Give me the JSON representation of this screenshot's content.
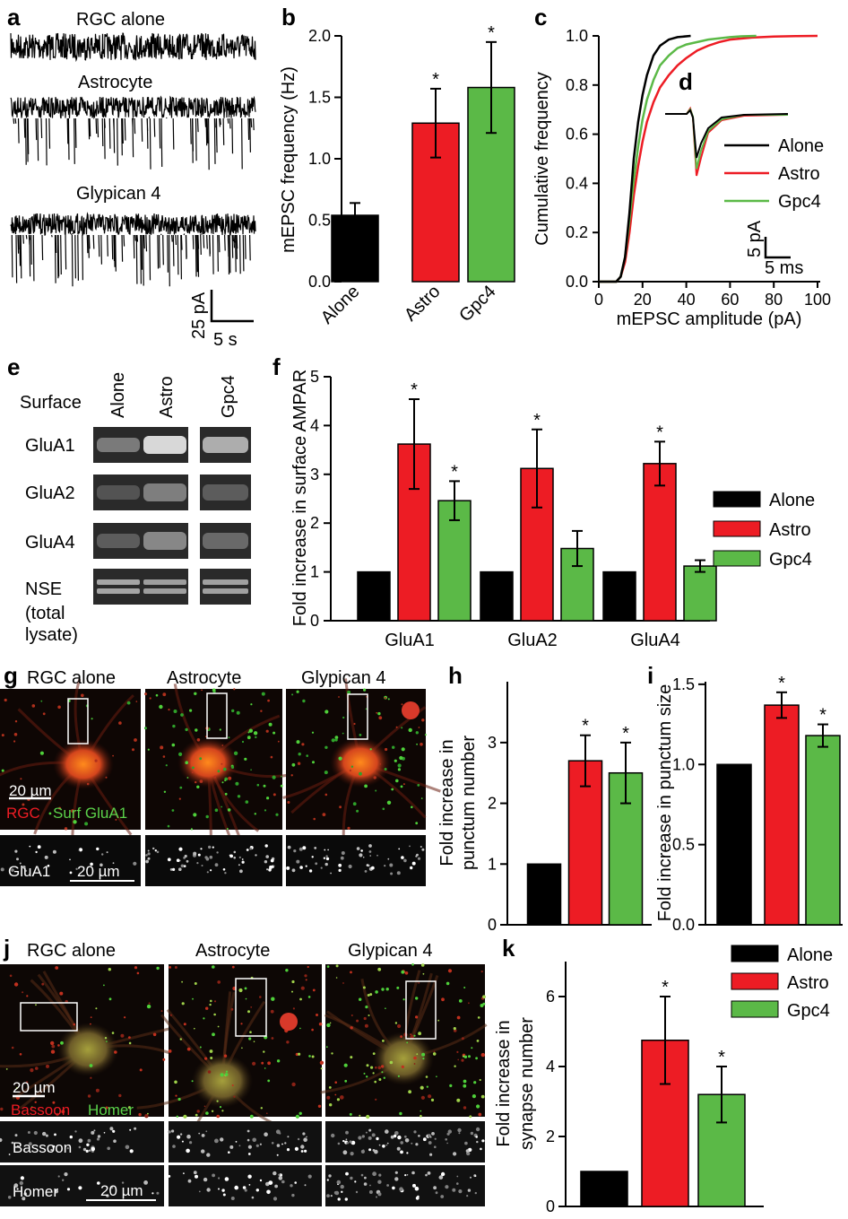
{
  "colors": {
    "alone": "#000000",
    "astro": "#ed1c24",
    "gpc4": "#5bb947"
  },
  "panel_labels": {
    "a": "a",
    "b": "b",
    "c": "c",
    "d": "d",
    "e": "e",
    "f": "f",
    "g": "g",
    "h": "h",
    "i": "i",
    "j": "j",
    "k": "k"
  },
  "panel_a": {
    "traces": [
      "RGC alone",
      "Astrocyte",
      "Glypican 4"
    ],
    "scale_y": "25 pA",
    "scale_x": "5 s"
  },
  "panel_d": {
    "scale_y": "5 pA",
    "scale_x": "5 ms"
  },
  "panel_e": {
    "header": "Surface",
    "columns": [
      "Alone",
      "Astro",
      "Gpc4"
    ],
    "rows": [
      "GluA1",
      "GluA2",
      "GluA4",
      "NSE",
      "(total",
      "lysate)"
    ]
  },
  "panel_g": {
    "titles": [
      "RGC alone",
      "Astrocyte",
      "Glypican 4"
    ],
    "scale": "20 µm",
    "stain_red": "RGC",
    "stain_green": "Surf GluA1",
    "strip_label": "GluA1",
    "strip_scale": "20 µm"
  },
  "panel_j": {
    "titles": [
      "RGC alone",
      "Astrocyte",
      "Glypican 4"
    ],
    "scale": "20 µm",
    "stain_red": "Bassoon",
    "stain_green": "Homer",
    "strip1_label": "Bassoon",
    "strip2_label": "Homer",
    "strip_scale": "20 µm"
  },
  "chart_data": [
    {
      "panel": "b",
      "type": "bar",
      "categories": [
        "Alone",
        "Astro",
        "Gpc4"
      ],
      "values": [
        0.54,
        1.29,
        1.58
      ],
      "errors": [
        0.1,
        0.28,
        0.37
      ],
      "significant": [
        false,
        true,
        true
      ],
      "ylabel": "mEPSC frequency (Hz)",
      "ylim": [
        0,
        2.0
      ],
      "yticks": [
        "0.0",
        "0.5",
        "1.0",
        "1.5",
        "2.0"
      ]
    },
    {
      "panel": "c",
      "type": "line",
      "xlabel": "mEPSC amplitude (pA)",
      "ylabel": "Cumulative frequency",
      "xlim": [
        0,
        100
      ],
      "ylim": [
        0,
        1.0
      ],
      "xticks": [
        "0",
        "20",
        "40",
        "60",
        "80",
        "100"
      ],
      "yticks": [
        "0.0",
        "0.2",
        "0.4",
        "0.6",
        "0.8",
        "1.0"
      ],
      "legend": [
        "Alone",
        "Astro",
        "Gpc4"
      ],
      "series": [
        {
          "name": "Alone",
          "x": [
            8,
            10,
            12,
            14,
            16,
            18,
            20,
            22,
            25,
            28,
            32,
            36,
            42
          ],
          "y": [
            0,
            0.02,
            0.1,
            0.28,
            0.5,
            0.65,
            0.76,
            0.84,
            0.92,
            0.96,
            0.985,
            0.995,
            1.0
          ]
        },
        {
          "name": "Astro",
          "x": [
            8,
            10,
            12,
            14,
            16,
            18,
            20,
            22,
            25,
            28,
            32,
            36,
            40,
            45,
            50,
            55,
            60,
            70,
            80,
            90,
            100
          ],
          "y": [
            0,
            0.02,
            0.08,
            0.2,
            0.35,
            0.47,
            0.57,
            0.65,
            0.73,
            0.79,
            0.84,
            0.88,
            0.91,
            0.94,
            0.96,
            0.975,
            0.985,
            0.993,
            0.997,
            0.999,
            1.0
          ]
        },
        {
          "name": "Gpc4",
          "x": [
            8,
            10,
            12,
            14,
            16,
            18,
            20,
            22,
            25,
            28,
            32,
            36,
            40,
            45,
            50,
            55,
            60,
            65,
            72
          ],
          "y": [
            0,
            0.02,
            0.1,
            0.25,
            0.41,
            0.55,
            0.66,
            0.74,
            0.82,
            0.88,
            0.92,
            0.95,
            0.965,
            0.975,
            0.985,
            0.99,
            0.995,
            0.998,
            1.0
          ]
        }
      ]
    },
    {
      "panel": "f",
      "type": "bar",
      "categories": [
        "GluA1",
        "GluA2",
        "GluA4"
      ],
      "ylabel": "Fold increase in surface AMPAR",
      "ylim": [
        0,
        5
      ],
      "yticks": [
        "0",
        "1",
        "2",
        "3",
        "4",
        "5"
      ],
      "legend": [
        "Alone",
        "Astro",
        "Gpc4"
      ],
      "series": [
        {
          "name": "Alone",
          "values": [
            1,
            1,
            1
          ],
          "errors": [
            0,
            0,
            0
          ],
          "significant": [
            false,
            false,
            false
          ]
        },
        {
          "name": "Astro",
          "values": [
            3.62,
            3.12,
            3.22
          ],
          "errors": [
            0.92,
            0.8,
            0.45
          ],
          "significant": [
            true,
            true,
            true
          ]
        },
        {
          "name": "Gpc4",
          "values": [
            2.46,
            1.48,
            1.12
          ],
          "errors": [
            0.4,
            0.36,
            0.12
          ],
          "significant": [
            true,
            false,
            false
          ]
        }
      ]
    },
    {
      "panel": "h",
      "type": "bar",
      "categories": [
        "Alone",
        "Astro",
        "Gpc4"
      ],
      "values": [
        1.0,
        2.7,
        2.5
      ],
      "errors": [
        0,
        0.42,
        0.5
      ],
      "significant": [
        false,
        true,
        true
      ],
      "ylabel": [
        "Fold increase in",
        "punctum number"
      ],
      "ylim": [
        0,
        3.5
      ],
      "yticks": [
        "0",
        "1",
        "2",
        "3"
      ]
    },
    {
      "panel": "i",
      "type": "bar",
      "categories": [
        "Alone",
        "Astro",
        "Gpc4"
      ],
      "values": [
        1.0,
        1.37,
        1.18
      ],
      "errors": [
        0,
        0.08,
        0.07
      ],
      "significant": [
        false,
        true,
        true
      ],
      "ylabel": "Fold increase in punctum size",
      "ylim": [
        0,
        1.6
      ],
      "yticks": [
        "0.0",
        "0.5",
        "1.0",
        "1.5"
      ]
    },
    {
      "panel": "k",
      "type": "bar",
      "categories": [
        "Alone",
        "Astro",
        "Gpc4"
      ],
      "values": [
        1.0,
        4.75,
        3.2
      ],
      "errors": [
        0,
        1.25,
        0.8
      ],
      "significant": [
        false,
        true,
        true
      ],
      "ylabel": [
        "Fold increase in",
        "synapse number"
      ],
      "ylim": [
        0,
        7
      ],
      "yticks": [
        "0",
        "2",
        "4",
        "6"
      ],
      "legend": [
        "Alone",
        "Astro",
        "Gpc4"
      ]
    }
  ]
}
